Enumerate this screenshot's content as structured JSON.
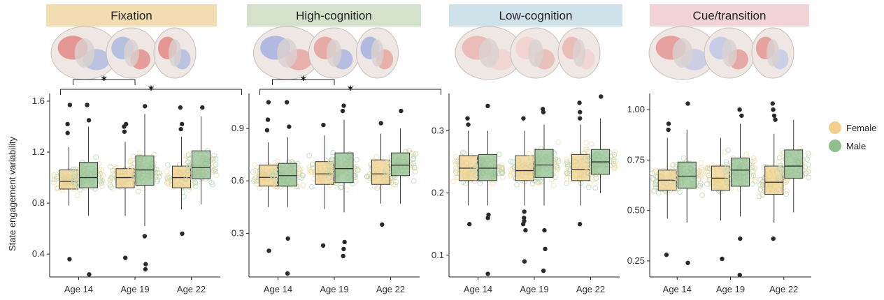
{
  "figure": {
    "ylabel": "State engagement variability",
    "legend": [
      {
        "name": "Female",
        "color": "#f0d08c"
      },
      {
        "name": "Male",
        "color": "#8fbf8f"
      }
    ],
    "legend_position": "right"
  },
  "chart_data": [
    {
      "type": "boxplot",
      "title": "Fixation",
      "header_color": "#f2dcb1",
      "categories": [
        "Age 14",
        "Age 19",
        "Age 22"
      ],
      "ylim": [
        0.22,
        1.66
      ],
      "yticks": [
        0.4,
        0.8,
        1.2,
        1.6
      ],
      "tick_labels": [
        "0.4",
        "0.8",
        "1.2",
        "1.6"
      ],
      "brain_tint": "mixed",
      "series": [
        {
          "name": "Female",
          "boxes": [
            {
              "min": 0.78,
              "q1": 0.91,
              "median": 0.97,
              "q3": 1.06,
              "max": 1.24,
              "outliers": [
                0.36,
                1.35,
                1.42,
                1.57
              ]
            },
            {
              "min": 0.7,
              "q1": 0.92,
              "median": 1.0,
              "q3": 1.07,
              "max": 1.28,
              "outliers": [
                0.37,
                1.36,
                1.4,
                1.42
              ]
            },
            {
              "min": 0.75,
              "q1": 0.92,
              "median": 1.0,
              "q3": 1.09,
              "max": 1.32,
              "outliers": [
                0.56,
                1.38,
                1.42,
                1.55
              ]
            }
          ]
        },
        {
          "name": "Male",
          "boxes": [
            {
              "min": 0.7,
              "q1": 0.92,
              "median": 1.0,
              "q3": 1.12,
              "max": 1.4,
              "outliers": [
                0.24,
                1.57,
                1.45
              ]
            },
            {
              "min": 0.62,
              "q1": 0.94,
              "median": 1.06,
              "q3": 1.17,
              "max": 1.5,
              "outliers": [
                0.28,
                0.32,
                0.54,
                1.56
              ]
            },
            {
              "min": 0.79,
              "q1": 0.99,
              "median": 1.08,
              "q3": 1.21,
              "max": 1.48,
              "outliers": [
                1.55
              ]
            }
          ]
        }
      ],
      "significance": [
        {
          "from": "Age 14",
          "to": "Age 19",
          "label": "*"
        },
        {
          "from": "Age 14",
          "to": "Age 22",
          "label": "*"
        }
      ]
    },
    {
      "type": "boxplot",
      "title": "High-cognition",
      "header_color": "#d4e2cc",
      "categories": [
        "Age 14",
        "Age 19",
        "Age 22"
      ],
      "ylim": [
        0.05,
        1.1
      ],
      "yticks": [
        0.3,
        0.6,
        0.9
      ],
      "tick_labels": [
        "0.3",
        "0.6",
        "0.9"
      ],
      "brain_tint": "blue-red",
      "series": [
        {
          "name": "Female",
          "boxes": [
            {
              "min": 0.45,
              "q1": 0.57,
              "median": 0.62,
              "q3": 0.69,
              "max": 0.82,
              "outliers": [
                0.2,
                0.89,
                0.95,
                1.05
              ]
            },
            {
              "min": 0.44,
              "q1": 0.58,
              "median": 0.64,
              "q3": 0.71,
              "max": 0.86,
              "outliers": [
                0.23,
                0.92
              ]
            },
            {
              "min": 0.47,
              "q1": 0.58,
              "median": 0.64,
              "q3": 0.72,
              "max": 0.87,
              "outliers": [
                0.35,
                0.93
              ]
            }
          ]
        },
        {
          "name": "Male",
          "boxes": [
            {
              "min": 0.45,
              "q1": 0.57,
              "median": 0.63,
              "q3": 0.7,
              "max": 0.85,
              "outliers": [
                0.07,
                0.27,
                0.91,
                1.05
              ]
            },
            {
              "min": 0.42,
              "q1": 0.59,
              "median": 0.67,
              "q3": 0.76,
              "max": 0.95,
              "outliers": [
                0.17,
                0.21,
                0.25,
                1.03,
                1.0
              ]
            },
            {
              "min": 0.47,
              "q1": 0.63,
              "median": 0.69,
              "q3": 0.76,
              "max": 0.9,
              "outliers": [
                1.0
              ]
            }
          ]
        }
      ],
      "significance": [
        {
          "from": "Age 14",
          "to": "Age 19",
          "label": "*"
        },
        {
          "from": "Age 14",
          "to": "Age 22",
          "label": "*"
        }
      ]
    },
    {
      "type": "boxplot",
      "title": "Low-cognition",
      "header_color": "#cfe2ea",
      "categories": [
        "Age 14",
        "Age 19",
        "Age 22"
      ],
      "ylim": [
        0.065,
        0.36
      ],
      "yticks": [
        0.1,
        0.2,
        0.3
      ],
      "tick_labels": [
        "0.1",
        "0.2",
        "0.3"
      ],
      "brain_tint": "red",
      "series": [
        {
          "name": "Female",
          "boxes": [
            {
              "min": 0.18,
              "q1": 0.22,
              "median": 0.24,
              "q3": 0.26,
              "max": 0.3,
              "outliers": [
                0.15,
                0.31,
                0.32
              ]
            },
            {
              "min": 0.18,
              "q1": 0.22,
              "median": 0.236,
              "q3": 0.26,
              "max": 0.3,
              "outliers": [
                0.09,
                0.14,
                0.15,
                0.155,
                0.16,
                0.17,
                0.32
              ]
            },
            {
              "min": 0.18,
              "q1": 0.22,
              "median": 0.238,
              "q3": 0.262,
              "max": 0.31,
              "outliers": [
                0.15,
                0.32,
                0.33,
                0.345
              ]
            }
          ]
        },
        {
          "name": "Male",
          "boxes": [
            {
              "min": 0.18,
              "q1": 0.22,
              "median": 0.24,
              "q3": 0.262,
              "max": 0.3,
              "outliers": [
                0.07,
                0.16,
                0.165,
                0.34
              ]
            },
            {
              "min": 0.18,
              "q1": 0.225,
              "median": 0.245,
              "q3": 0.27,
              "max": 0.31,
              "outliers": [
                0.075,
                0.11,
                0.14,
                0.33,
                0.335
              ]
            },
            {
              "min": 0.2,
              "q1": 0.23,
              "median": 0.25,
              "q3": 0.27,
              "max": 0.32,
              "outliers": [
                0.355
              ]
            }
          ]
        }
      ],
      "significance": []
    },
    {
      "type": "boxplot",
      "title": "Cue/transition",
      "header_color": "#f2d4d6",
      "categories": [
        "Age 14",
        "Age 19",
        "Age 22"
      ],
      "ylim": [
        0.17,
        1.08
      ],
      "yticks": [
        0.25,
        0.5,
        0.75,
        1.0
      ],
      "tick_labels": [
        "0.25",
        "0.50",
        "0.75",
        "1.00"
      ],
      "brain_tint": "red-blue",
      "series": [
        {
          "name": "Female",
          "boxes": [
            {
              "min": 0.46,
              "q1": 0.6,
              "median": 0.65,
              "q3": 0.7,
              "max": 0.86,
              "outliers": [
                0.28,
                0.93,
                0.9
              ]
            },
            {
              "min": 0.45,
              "q1": 0.6,
              "median": 0.66,
              "q3": 0.72,
              "max": 0.86,
              "outliers": [
                0.26
              ]
            },
            {
              "min": 0.44,
              "q1": 0.58,
              "median": 0.64,
              "q3": 0.72,
              "max": 0.88,
              "outliers": [
                0.36,
                0.95,
                0.97,
                1.0,
                1.03
              ]
            }
          ]
        },
        {
          "name": "Male",
          "boxes": [
            {
              "min": 0.44,
              "q1": 0.61,
              "median": 0.67,
              "q3": 0.74,
              "max": 0.9,
              "outliers": [
                0.24,
                1.03
              ]
            },
            {
              "min": 0.47,
              "q1": 0.62,
              "median": 0.7,
              "q3": 0.76,
              "max": 0.93,
              "outliers": [
                0.18,
                0.36,
                0.97,
                1.0
              ]
            },
            {
              "min": 0.49,
              "q1": 0.66,
              "median": 0.72,
              "q3": 0.8,
              "max": 0.95,
              "outliers": []
            }
          ]
        }
      ],
      "significance": []
    }
  ]
}
